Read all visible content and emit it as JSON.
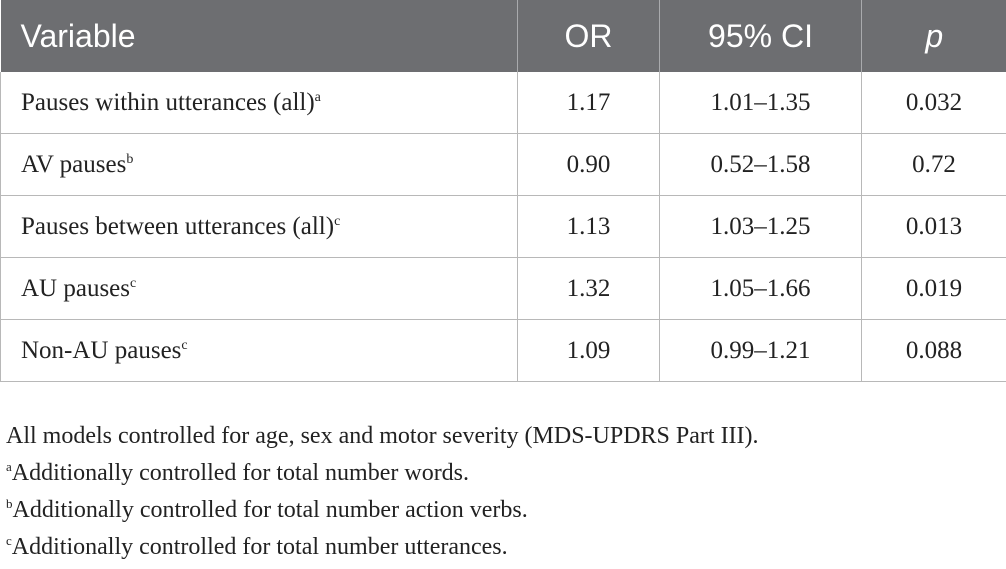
{
  "table": {
    "headers": [
      "Variable",
      "OR",
      "95% CI",
      "p"
    ],
    "rows": [
      {
        "variable": "Pauses within utterances (all)",
        "sup": "a",
        "or": "1.17",
        "ci": "1.01–1.35",
        "p": "0.032"
      },
      {
        "variable": "AV pauses",
        "sup": "b",
        "or": "0.90",
        "ci": "0.52–1.58",
        "p": "0.72"
      },
      {
        "variable": "Pauses between utterances (all)",
        "sup": "c",
        "or": "1.13",
        "ci": "1.03–1.25",
        "p": "0.013"
      },
      {
        "variable": "AU pauses",
        "sup": "c",
        "or": "1.32",
        "ci": "1.05–1.66",
        "p": "0.019"
      },
      {
        "variable": "Non-AU pauses",
        "sup": "c",
        "or": "1.09",
        "ci": "0.99–1.21",
        "p": "0.088"
      }
    ]
  },
  "footnotes": {
    "main": "All models controlled for age, sex and motor severity (MDS-UPDRS Part III).",
    "a": {
      "mark": "a",
      "text": "Additionally controlled for total number words."
    },
    "b": {
      "mark": "b",
      "text": "Additionally controlled for total number action verbs."
    },
    "c": {
      "mark": "c",
      "text": "Additionally controlled for total number utterances."
    }
  },
  "colors": {
    "header_bg": "#6d6e71",
    "header_text": "#ffffff",
    "rule": "#b8b8b8"
  }
}
